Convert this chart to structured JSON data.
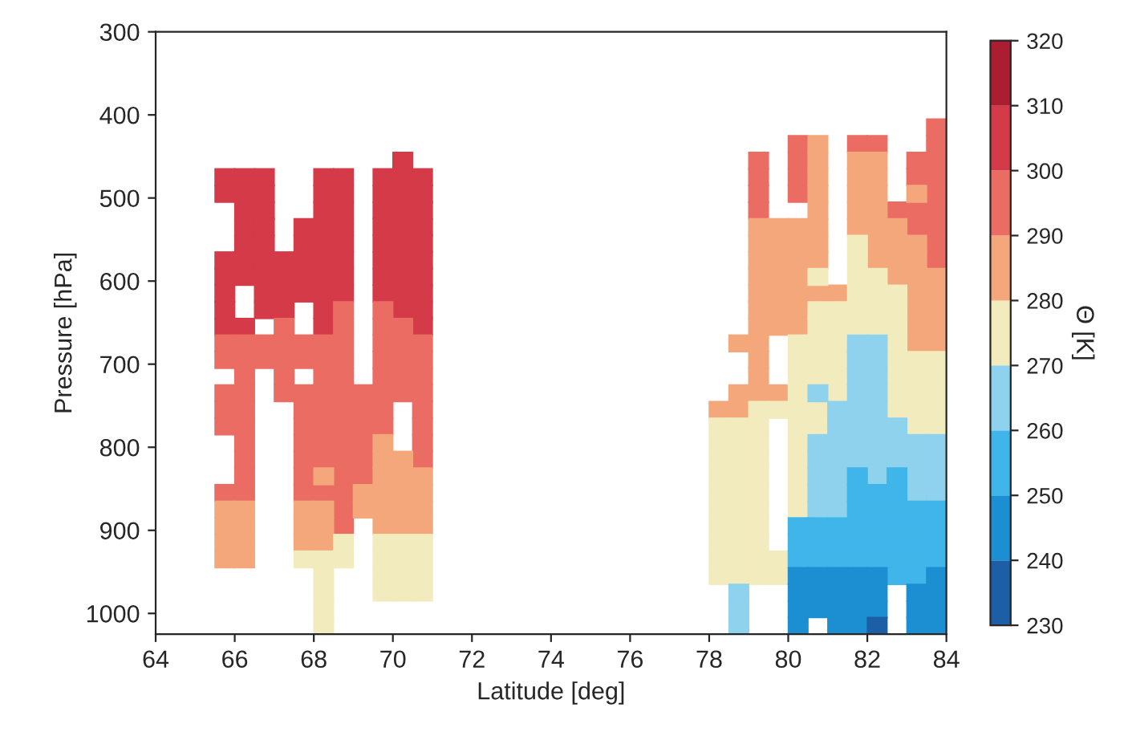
{
  "chart_data": {
    "type": "scatter",
    "xlabel": "Latitude [deg]",
    "ylabel": "Pressure [hPa]",
    "clabel": "Θ [K]",
    "xlim": [
      64,
      84
    ],
    "xticks": [
      64,
      66,
      68,
      70,
      72,
      74,
      76,
      78,
      80,
      82,
      84
    ],
    "ylim": [
      1025,
      300
    ],
    "yticks": [
      300,
      400,
      500,
      600,
      700,
      800,
      900,
      1000
    ],
    "clim": [
      230,
      320
    ],
    "cticks": [
      230,
      240,
      250,
      260,
      270,
      280,
      290,
      300,
      310,
      320
    ],
    "colors": [
      "#1d5fa6",
      "#1b8fd2",
      "#3fb5ea",
      "#8ed2ee",
      "#f2ebbd",
      "#f3a77b",
      "#ea6c62",
      "#d43a47",
      "#ab1e32"
    ],
    "marker": "square",
    "series": [
      {
        "color": "#d43a47",
        "x": [
          65.75,
          65.75,
          65.75,
          65.75,
          65.75,
          65.75,
          65.75,
          66.25,
          66.25,
          66.25,
          66.25,
          66.25,
          66.25,
          66.25,
          66.25,
          66.75,
          66.75,
          66.75,
          66.75,
          66.75,
          66.75,
          66.75,
          66.75,
          66.75,
          67.25,
          67.25,
          67.25,
          67.25,
          67.75,
          67.75,
          67.75,
          67.75,
          67.75,
          68.25,
          68.25,
          68.25,
          68.25,
          68.25,
          68.25,
          68.25,
          68.25,
          68.25,
          68.25,
          68.75,
          68.75,
          68.75,
          68.75,
          68.75,
          68.75,
          68.75,
          68.75,
          69.75,
          69.75,
          69.75,
          69.75,
          69.75,
          69.75,
          69.75,
          69.75,
          70.25,
          70.25,
          70.25,
          70.25,
          70.25,
          70.25,
          70.25,
          70.25,
          70.25,
          70.25,
          70.75,
          70.75,
          70.75,
          70.75,
          70.75,
          70.75,
          70.75,
          70.75,
          70.75,
          70.75
        ],
        "values": [
          475,
          495,
          575,
          595,
          615,
          635,
          655,
          475,
          495,
          515,
          535,
          555,
          575,
          595,
          655,
          475,
          495,
          515,
          535,
          555,
          575,
          595,
          615,
          635,
          575,
          595,
          615,
          635,
          535,
          555,
          575,
          595,
          615,
          475,
          495,
          515,
          535,
          555,
          575,
          595,
          615,
          635,
          655,
          475,
          495,
          515,
          535,
          555,
          575,
          595,
          615,
          475,
          495,
          515,
          535,
          555,
          575,
          595,
          615,
          455,
          475,
          495,
          515,
          535,
          555,
          575,
          595,
          615,
          635,
          475,
          495,
          515,
          535,
          555,
          575,
          595,
          615,
          635,
          655
        ]
      },
      {
        "color": "#ea6c62",
        "x": [
          65.75,
          65.75,
          65.75,
          65.75,
          65.75,
          65.75,
          66.25,
          66.25,
          66.25,
          66.25,
          66.25,
          66.25,
          66.25,
          66.25,
          66.25,
          66.25,
          66.75,
          66.75,
          67.25,
          67.25,
          67.25,
          67.25,
          67.25,
          67.75,
          67.75,
          67.75,
          67.75,
          67.75,
          67.75,
          67.75,
          67.75,
          67.75,
          68.25,
          68.25,
          68.25,
          68.25,
          68.25,
          68.25,
          68.25,
          68.25,
          68.25,
          68.75,
          68.75,
          68.75,
          68.75,
          68.75,
          68.75,
          68.75,
          68.75,
          68.75,
          68.75,
          68.75,
          68.75,
          68.75,
          68.75,
          69.25,
          69.25,
          69.25,
          69.25,
          69.25,
          69.25,
          69.75,
          69.75,
          69.75,
          69.75,
          69.75,
          69.75,
          69.75,
          69.75,
          70.25,
          70.25,
          70.25,
          70.25,
          70.25,
          70.75,
          70.75,
          70.75,
          70.75,
          70.75,
          70.75,
          70.75,
          70.75,
          79.25,
          79.25,
          79.25,
          79.25,
          80.25,
          80.25,
          80.25,
          80.25,
          81.75,
          82.25,
          82.75,
          83.25,
          83.25,
          83.25,
          83.25,
          83.75,
          83.75,
          83.75,
          83.75,
          83.75,
          83.75,
          83.75,
          83.75,
          83.75
        ],
        "values": [
          675,
          695,
          735,
          755,
          775,
          855,
          675,
          695,
          715,
          735,
          755,
          775,
          795,
          815,
          835,
          855,
          675,
          695,
          655,
          675,
          695,
          715,
          735,
          675,
          695,
          735,
          755,
          775,
          795,
          815,
          835,
          855,
          675,
          695,
          715,
          735,
          755,
          775,
          795,
          815,
          855,
          635,
          655,
          675,
          695,
          715,
          735,
          755,
          775,
          795,
          815,
          835,
          855,
          875,
          895,
          735,
          755,
          775,
          795,
          815,
          835,
          635,
          655,
          675,
          695,
          715,
          735,
          755,
          775,
          655,
          675,
          695,
          715,
          735,
          675,
          695,
          715,
          735,
          755,
          775,
          795,
          815,
          455,
          475,
          495,
          515,
          435,
          455,
          475,
          495,
          435,
          435,
          515,
          455,
          475,
          515,
          535,
          415,
          435,
          455,
          475,
          495,
          515,
          535,
          555,
          575
        ]
      },
      {
        "color": "#f3a77b",
        "x": [
          65.75,
          65.75,
          65.75,
          65.75,
          66.25,
          66.25,
          66.25,
          66.25,
          67.75,
          67.75,
          67.75,
          68.25,
          68.25,
          68.25,
          68.25,
          69.25,
          69.25,
          69.75,
          69.75,
          69.75,
          69.75,
          69.75,
          69.75,
          70.25,
          70.25,
          70.25,
          70.25,
          70.25,
          70.75,
          70.75,
          70.75,
          70.75,
          78.25,
          78.75,
          78.75,
          78.75,
          79.25,
          79.25,
          79.25,
          79.25,
          79.25,
          79.25,
          79.25,
          79.25,
          79.25,
          79.25,
          79.25,
          79.75,
          79.75,
          79.75,
          79.75,
          79.75,
          79.75,
          79.75,
          79.75,
          80.25,
          80.25,
          80.25,
          80.25,
          80.25,
          80.25,
          80.25,
          80.75,
          80.75,
          80.75,
          80.75,
          80.75,
          80.75,
          80.75,
          80.75,
          80.75,
          81.25,
          81.75,
          81.75,
          81.75,
          81.75,
          81.75,
          82.25,
          82.25,
          82.25,
          82.25,
          82.25,
          82.25,
          82.25,
          82.75,
          82.75,
          82.75,
          82.75,
          83.25,
          83.25,
          83.25,
          83.25,
          83.25,
          83.25,
          83.25,
          83.25,
          83.75,
          83.75,
          83.75,
          83.75,
          83.75
        ],
        "values": [
          875,
          895,
          915,
          935,
          875,
          895,
          915,
          935,
          875,
          895,
          915,
          835,
          875,
          895,
          915,
          855,
          875,
          795,
          815,
          835,
          855,
          875,
          895,
          815,
          835,
          855,
          875,
          895,
          835,
          855,
          875,
          895,
          755,
          675,
          735,
          755,
          535,
          555,
          575,
          595,
          615,
          635,
          655,
          675,
          695,
          715,
          735,
          535,
          555,
          575,
          595,
          615,
          635,
          655,
          735,
          535,
          555,
          575,
          595,
          615,
          635,
          655,
          435,
          455,
          475,
          495,
          515,
          535,
          555,
          575,
          615,
          615,
          455,
          475,
          495,
          515,
          535,
          455,
          475,
          495,
          515,
          535,
          555,
          575,
          535,
          555,
          575,
          595,
          495,
          555,
          575,
          595,
          615,
          635,
          655,
          675,
          595,
          615,
          635,
          655,
          675
        ]
      },
      {
        "color": "#f2ebbd",
        "x": [
          67.75,
          68.25,
          68.25,
          68.25,
          68.25,
          68.25,
          68.75,
          68.75,
          69.75,
          69.75,
          69.75,
          69.75,
          70.25,
          70.25,
          70.25,
          70.25,
          70.75,
          70.75,
          70.75,
          70.75,
          78.25,
          78.25,
          78.25,
          78.25,
          78.25,
          78.25,
          78.25,
          78.25,
          78.25,
          78.25,
          78.75,
          78.75,
          78.75,
          78.75,
          78.75,
          78.75,
          78.75,
          78.75,
          78.75,
          78.75,
          79.25,
          79.25,
          79.25,
          79.25,
          79.25,
          79.25,
          79.25,
          79.25,
          79.25,
          79.25,
          79.25,
          79.75,
          79.75,
          79.75,
          80.25,
          80.25,
          80.25,
          80.25,
          80.25,
          80.25,
          80.25,
          80.25,
          80.25,
          80.25,
          80.25,
          80.75,
          80.75,
          80.75,
          80.75,
          80.75,
          80.75,
          80.75,
          80.75,
          81.25,
          81.25,
          81.25,
          81.25,
          81.25,
          81.25,
          81.75,
          81.75,
          81.75,
          81.75,
          81.75,
          81.75,
          82.25,
          82.25,
          82.25,
          82.25,
          82.75,
          82.75,
          82.75,
          82.75,
          82.75,
          82.75,
          82.75,
          82.75,
          83.25,
          83.25,
          83.25,
          83.25,
          83.25,
          83.75,
          83.75,
          83.75,
          83.75,
          83.75
        ],
        "values": [
          935,
          935,
          955,
          975,
          995,
          1015,
          915,
          935,
          915,
          935,
          955,
          975,
          915,
          935,
          955,
          975,
          915,
          935,
          955,
          975,
          775,
          795,
          815,
          835,
          855,
          875,
          895,
          915,
          935,
          955,
          775,
          795,
          815,
          835,
          855,
          875,
          895,
          915,
          935,
          955,
          755,
          775,
          795,
          815,
          835,
          855,
          875,
          895,
          915,
          935,
          955,
          755,
          935,
          955,
          675,
          695,
          715,
          735,
          755,
          775,
          795,
          815,
          835,
          855,
          875,
          595,
          635,
          655,
          675,
          695,
          715,
          755,
          775,
          635,
          655,
          675,
          695,
          715,
          735,
          555,
          575,
          595,
          615,
          635,
          655,
          595,
          615,
          635,
          655,
          615,
          635,
          655,
          675,
          695,
          715,
          735,
          755,
          695,
          715,
          735,
          755,
          775,
          695,
          715,
          735,
          755,
          775
        ]
      },
      {
        "color": "#8ed2ee",
        "x": [
          78.75,
          78.75,
          78.75,
          80.75,
          80.75,
          80.75,
          80.75,
          80.75,
          80.75,
          81.25,
          81.25,
          81.25,
          81.25,
          81.25,
          81.25,
          81.25,
          81.75,
          81.75,
          81.75,
          81.75,
          81.75,
          81.75,
          81.75,
          81.75,
          82.25,
          82.25,
          82.25,
          82.25,
          82.25,
          82.25,
          82.25,
          82.25,
          82.25,
          82.75,
          82.75,
          82.75,
          83.25,
          83.25,
          83.25,
          83.25,
          83.75,
          83.75,
          83.75,
          83.75
        ],
        "values": [
          975,
          995,
          1015,
          735,
          795,
          815,
          835,
          855,
          875,
          755,
          775,
          795,
          815,
          835,
          855,
          875,
          675,
          695,
          715,
          735,
          755,
          775,
          795,
          815,
          675,
          695,
          715,
          735,
          755,
          775,
          795,
          815,
          835,
          775,
          795,
          815,
          795,
          815,
          835,
          855,
          795,
          815,
          835,
          855
        ]
      },
      {
        "color": "#3fb5ea",
        "x": [
          80.25,
          80.25,
          80.25,
          80.75,
          80.75,
          80.75,
          81.25,
          81.25,
          81.25,
          81.75,
          81.75,
          81.75,
          81.75,
          81.75,
          81.75,
          82.25,
          82.25,
          82.25,
          82.25,
          82.25,
          82.75,
          82.75,
          82.75,
          82.75,
          82.75,
          82.75,
          82.75,
          83.25,
          83.25,
          83.25,
          83.25,
          83.25,
          83.75,
          83.75,
          83.75,
          83.75
        ],
        "values": [
          895,
          915,
          935,
          895,
          915,
          935,
          895,
          915,
          935,
          835,
          855,
          875,
          895,
          915,
          935,
          855,
          875,
          895,
          915,
          935,
          835,
          855,
          875,
          895,
          915,
          935,
          955,
          875,
          895,
          915,
          935,
          955,
          875,
          895,
          915,
          935
        ]
      },
      {
        "color": "#1b8fd2",
        "x": [
          80.25,
          80.25,
          80.25,
          80.25,
          80.75,
          80.75,
          80.75,
          81.25,
          81.25,
          81.25,
          81.25,
          81.75,
          81.75,
          81.75,
          81.75,
          82.25,
          82.25,
          82.25,
          83.25,
          83.25,
          83.25,
          83.75,
          83.75,
          83.75,
          83.75
        ],
        "values": [
          955,
          975,
          995,
          1015,
          955,
          975,
          995,
          955,
          975,
          995,
          1015,
          955,
          975,
          995,
          1015,
          955,
          975,
          995,
          975,
          995,
          1015,
          955,
          975,
          995,
          1015
        ]
      },
      {
        "color": "#1d5fa6",
        "x": [
          82.25
        ],
        "values": [
          1015
        ]
      }
    ]
  }
}
